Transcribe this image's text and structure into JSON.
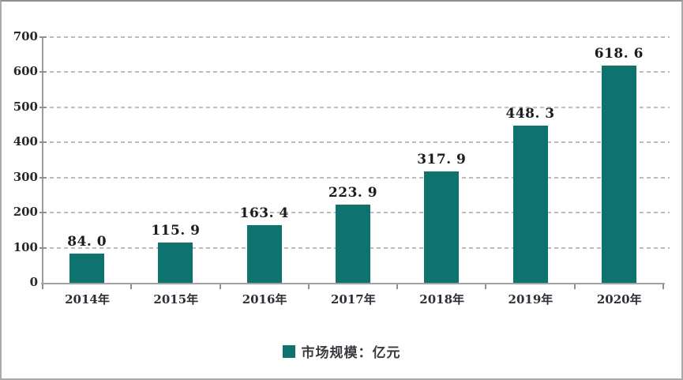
{
  "figure": {
    "background": "#ffffff",
    "border_color": "#aaaaaa"
  },
  "chart_data": {
    "type": "bar",
    "title": "",
    "xlabel": "",
    "ylabel": "",
    "categories": [
      "2014年",
      "2015年",
      "2016年",
      "2017年",
      "2018年",
      "2019年",
      "2020年"
    ],
    "values": [
      84.0,
      115.9,
      163.4,
      223.9,
      317.9,
      448.3,
      618.6
    ],
    "value_labels": [
      "84. 0",
      "115. 9",
      "163. 4",
      "223. 9",
      "317. 9",
      "448. 3",
      "618. 6"
    ],
    "ylim": [
      0,
      700
    ],
    "yticks": [
      0,
      100,
      200,
      300,
      400,
      500,
      600,
      700
    ],
    "grid": "horizontal-dashed",
    "grid_color": "#bdbdbd",
    "axis_color": "#9c9c9c",
    "bar_color": "#0E736E",
    "legend": {
      "label": "市场规模：亿元",
      "position": "bottom-center",
      "marker_color": "#0E736E"
    }
  }
}
